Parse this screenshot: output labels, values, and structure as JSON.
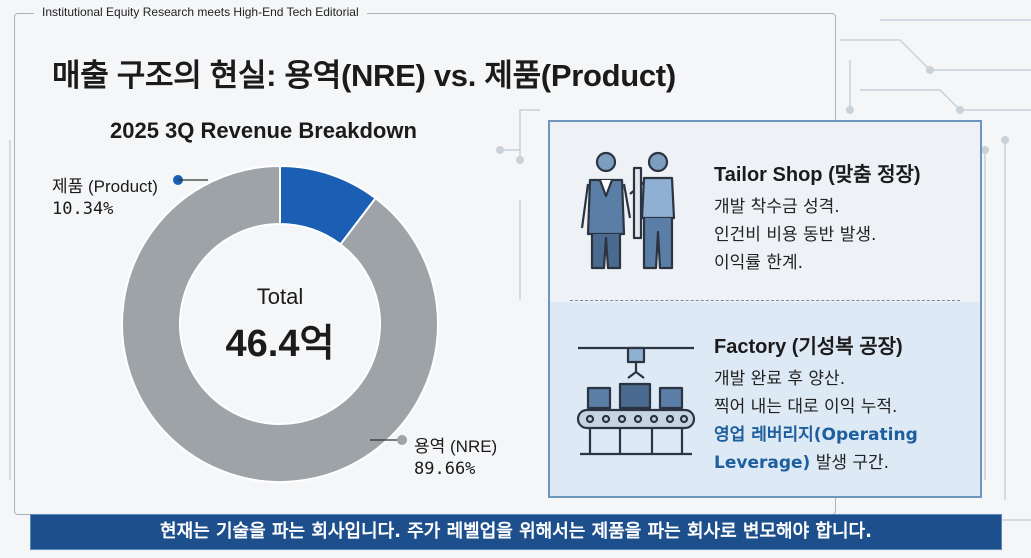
{
  "header": {
    "tagline": "Institutional Equity Research meets High-End Tech Editorial"
  },
  "title": "매출 구조의 현실: 용역(NRE) vs. 제품(Product)",
  "chart_data": {
    "type": "pie",
    "title": "2025 3Q Revenue Breakdown",
    "center_label": "Total",
    "center_value": "46.4억",
    "slices": [
      {
        "name": "제품 (Product)",
        "label": "10.34%",
        "value": 10.34,
        "color": "#1a5fb4"
      },
      {
        "name": "용역 (NRE)",
        "label": "89.66%",
        "value": 89.66,
        "color": "#9ea3a8"
      }
    ]
  },
  "panels": {
    "tailor": {
      "title": "Tailor Shop (맞춤 정장)",
      "icon": "tailor-measuring-icon",
      "lines": [
        "개발 착수금 성격.",
        "인건비 비용 동반 발생.",
        "이익률 한계."
      ]
    },
    "factory": {
      "title": "Factory (기성복 공장)",
      "icon": "factory-conveyor-icon",
      "lines": [
        "개발 완료 후 양산.",
        "찍어 내는 대로 이익 누적."
      ],
      "highlight_1": "영업 레버리지(Operating",
      "highlight_2": "Leverage)",
      "tail": " 발생 구간."
    }
  },
  "footer": {
    "message": "현재는 기술을 파는 회사입니다. 주가 레벨업을 위해서는 제품을 파는 회사로 변모해야 합니다."
  },
  "colors": {
    "accent": "#1a5fb4",
    "nre_gray": "#9ea3a8",
    "footer_bg": "#1d4f8c"
  }
}
